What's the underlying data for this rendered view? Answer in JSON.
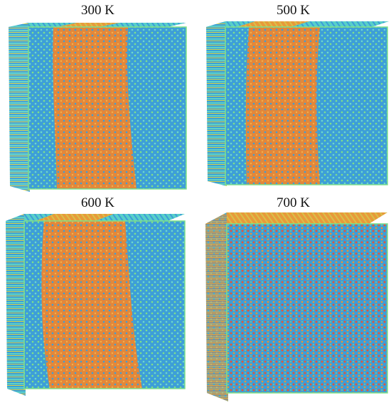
{
  "panels": [
    {
      "label": "300 K"
    },
    {
      "label": "500 K"
    },
    {
      "label": "600 K"
    },
    {
      "label": "700 K"
    }
  ],
  "colors": {
    "blue_phase": "#3fa0d8",
    "orange_phase": "#e38a3a",
    "cyan_stripe": "#58d0c8",
    "yellow_stripe": "#d8d040",
    "edge_green": "#7fe08a",
    "mixed_red": "#e2553a"
  }
}
